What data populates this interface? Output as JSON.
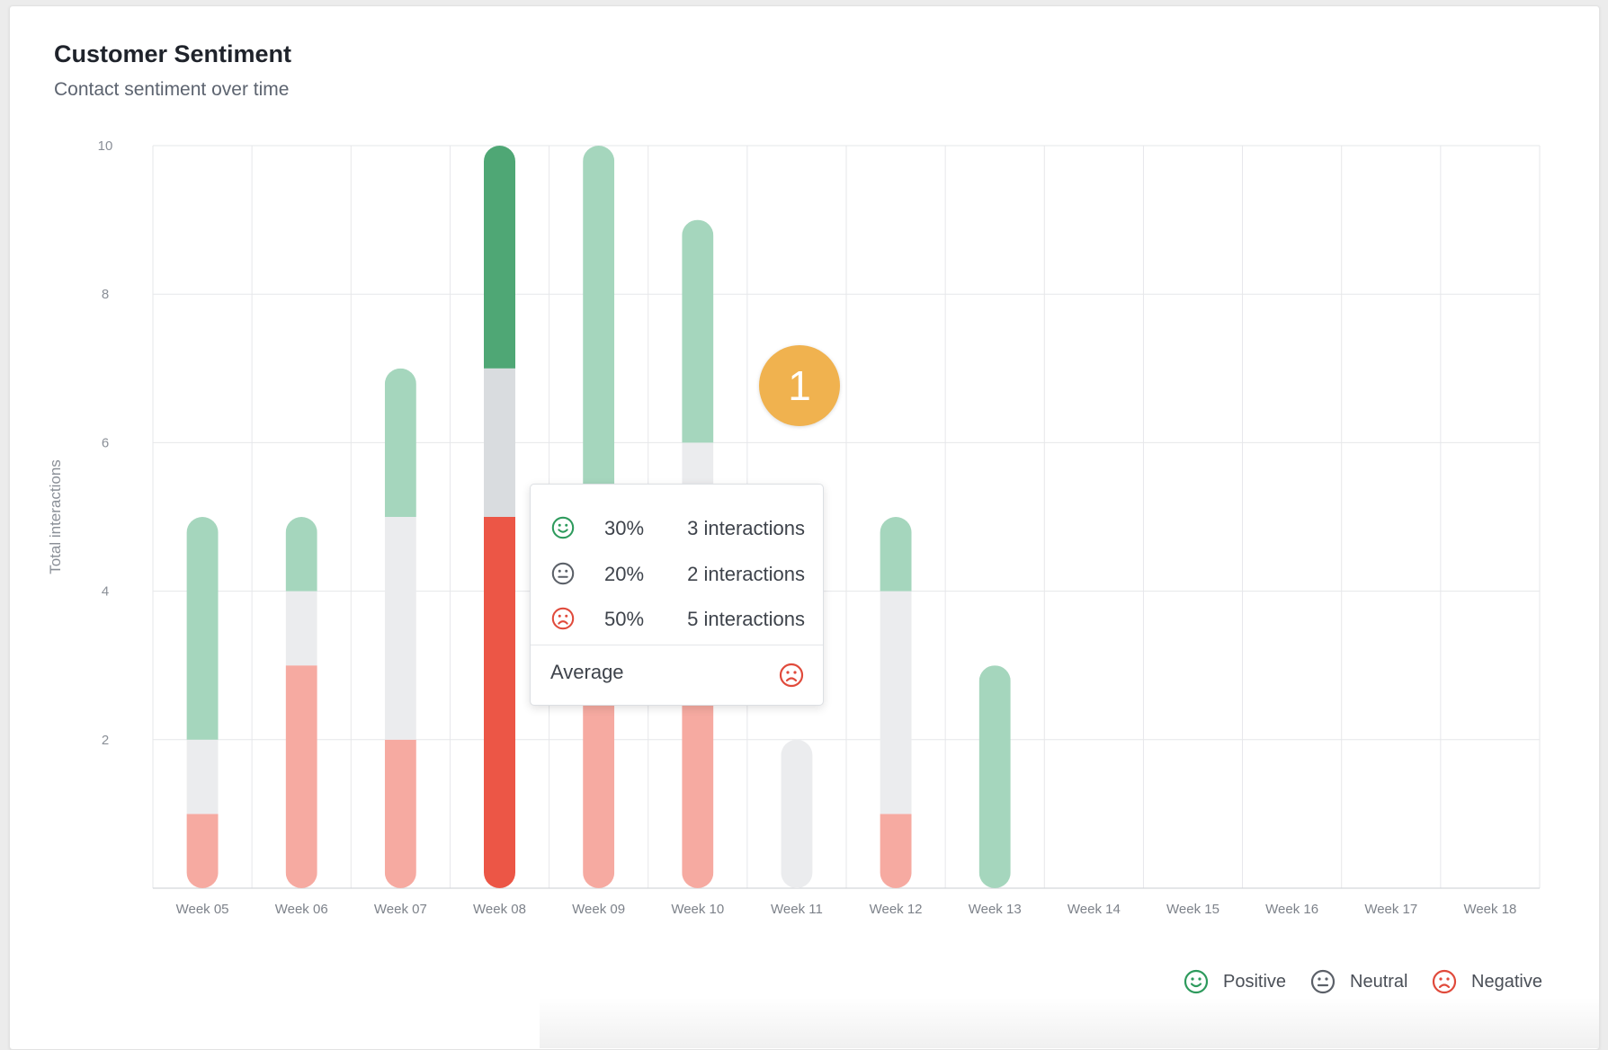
{
  "card": {
    "title": "Customer Sentiment",
    "subtitle": "Contact sentiment over time"
  },
  "chart_data": {
    "type": "bar",
    "stacked": true,
    "ylabel": "Total interactions",
    "xlabel": "",
    "ylim": [
      0,
      10
    ],
    "yticks": [
      "2",
      "4",
      "6",
      "8",
      "10"
    ],
    "grid": true,
    "categories": [
      "Week 05",
      "Week 06",
      "Week 07",
      "Week 08",
      "Week 09",
      "Week 10",
      "Week 11",
      "Week 12",
      "Week 13",
      "Week 14",
      "Week 15",
      "Week 16",
      "Week 17",
      "Week 18"
    ],
    "series": [
      {
        "name": "Negative",
        "values": [
          1,
          3,
          2,
          5,
          5,
          4,
          0,
          1,
          0,
          0,
          0,
          0,
          0,
          0
        ]
      },
      {
        "name": "Neutral",
        "values": [
          1,
          1,
          3,
          2,
          0,
          2,
          2,
          3,
          0,
          0,
          0,
          0,
          0,
          0
        ]
      },
      {
        "name": "Positive",
        "values": [
          3,
          1,
          2,
          3,
          5,
          3,
          0,
          1,
          3,
          0,
          0,
          0,
          0,
          0
        ]
      }
    ],
    "highlighted_category": "Week 08",
    "legend_position": "bottom-right"
  },
  "colors": {
    "positive": "#a5d6bd",
    "positive_active": "#4fa775",
    "neutral": "#ebecee",
    "neutral_active": "#d9dcdf",
    "negative": "#f6aaa1",
    "negative_active": "#ec5646",
    "positive_icon": "#2d9a5c",
    "neutral_icon": "#5b6068",
    "negative_icon": "#e04a3b",
    "badge": "#f0b24f"
  },
  "tooltip": {
    "rows": [
      {
        "icon": "happy-face-icon",
        "percent": "30%",
        "count": "3 interactions"
      },
      {
        "icon": "neutral-face-icon",
        "percent": "20%",
        "count": "2 interactions"
      },
      {
        "icon": "sad-face-icon",
        "percent": "50%",
        "count": "5 interactions"
      }
    ],
    "average_label": "Average",
    "average_icon": "sad-face-icon"
  },
  "step_badge": "1",
  "legend": {
    "items": [
      {
        "icon": "happy-face-icon",
        "label": "Positive"
      },
      {
        "icon": "neutral-face-icon",
        "label": "Neutral"
      },
      {
        "icon": "sad-face-icon",
        "label": "Negative"
      }
    ]
  }
}
